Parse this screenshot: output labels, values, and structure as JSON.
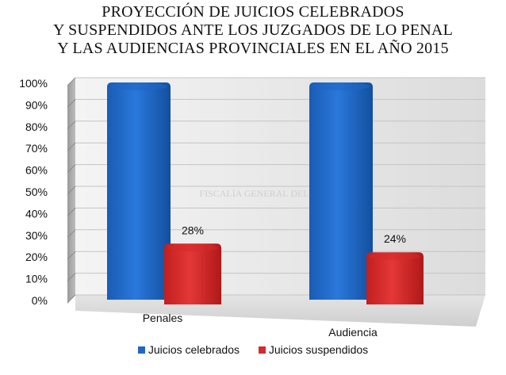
{
  "chart_data": {
    "type": "bar",
    "title_lines": [
      "PROYECCIÓN DE JUICIOS CELEBRADOS",
      "Y SUSPENDIDOS ANTE LOS JUZGADOS DE LO PENAL",
      "Y LAS AUDIENCIAS PROVINCIALES EN EL AÑO 2015"
    ],
    "categories": [
      "Penales",
      "Audiencia"
    ],
    "series": [
      {
        "name": "Juicios celebrados",
        "values": [
          100,
          100
        ],
        "color": "#1f66c4",
        "data_labels": [
          "",
          ""
        ]
      },
      {
        "name": "Juicios suspendidos",
        "values": [
          28,
          24
        ],
        "color": "#d62a2a",
        "data_labels": [
          "28%",
          "24%"
        ]
      }
    ],
    "y_ticks": [
      "0%",
      "10%",
      "20%",
      "30%",
      "40%",
      "50%",
      "60%",
      "70%",
      "80%",
      "90%",
      "100%"
    ],
    "ylim": [
      0,
      100
    ],
    "grid": true,
    "legend_position": "bottom",
    "watermark": "FISCALÍA GENERAL DEL ESTADO"
  }
}
